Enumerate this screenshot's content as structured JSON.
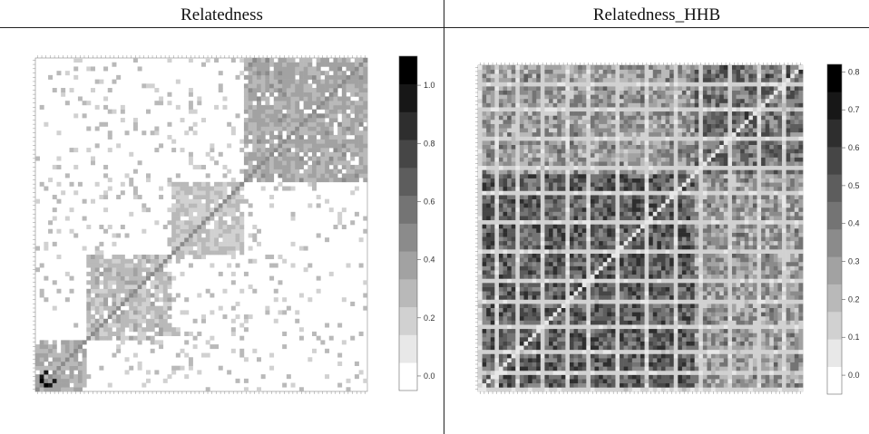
{
  "chart_data": [
    {
      "type": "heatmap",
      "title": "Relatedness",
      "n": 78,
      "colorbar": {
        "min": -0.05,
        "max": 1.1,
        "ticks": [
          "0.0",
          "0.2",
          "0.4",
          "0.6",
          "0.8",
          "1.0"
        ],
        "tick_values": [
          0.0,
          0.2,
          0.4,
          0.6,
          0.8,
          1.0
        ]
      },
      "blocks": [
        {
          "start": 0,
          "end": 12,
          "value": 0.32
        },
        {
          "start": 12,
          "end": 32,
          "value": 0.25
        },
        {
          "start": 32,
          "end": 49,
          "value": 0.22
        },
        {
          "start": 49,
          "end": 78,
          "value": 0.34
        }
      ],
      "off_block_value": 0.0,
      "diagonal_value": 0.5,
      "hotspots": [
        {
          "i": 1,
          "j": 2,
          "value": 1.05
        },
        {
          "i": 3,
          "j": 1,
          "value": 1.0
        },
        {
          "i": 2,
          "j": 4,
          "value": 0.95
        }
      ],
      "colors": {
        "low": "#ffffff",
        "high": "#000000"
      }
    },
    {
      "type": "heatmap",
      "title": "Relatedness_HHB",
      "n": 78,
      "colorbar": {
        "min": -0.05,
        "max": 0.82,
        "ticks": [
          "0.0",
          "0.1",
          "0.2",
          "0.3",
          "0.4",
          "0.5",
          "0.6",
          "0.7",
          "0.8"
        ],
        "tick_values": [
          0.0,
          0.1,
          0.2,
          0.3,
          0.4,
          0.5,
          0.6,
          0.7,
          0.8
        ]
      },
      "base_value": 0.42,
      "block_lower_value": 0.5,
      "block_upper_value": 0.45,
      "block_split": 52,
      "diagonal_value": 0.0,
      "light_rows": [
        0,
        4,
        9,
        15,
        21,
        26,
        33,
        40,
        47,
        53,
        60,
        67,
        73
      ],
      "colors": {
        "low": "#ffffff",
        "high": "#000000"
      }
    }
  ]
}
